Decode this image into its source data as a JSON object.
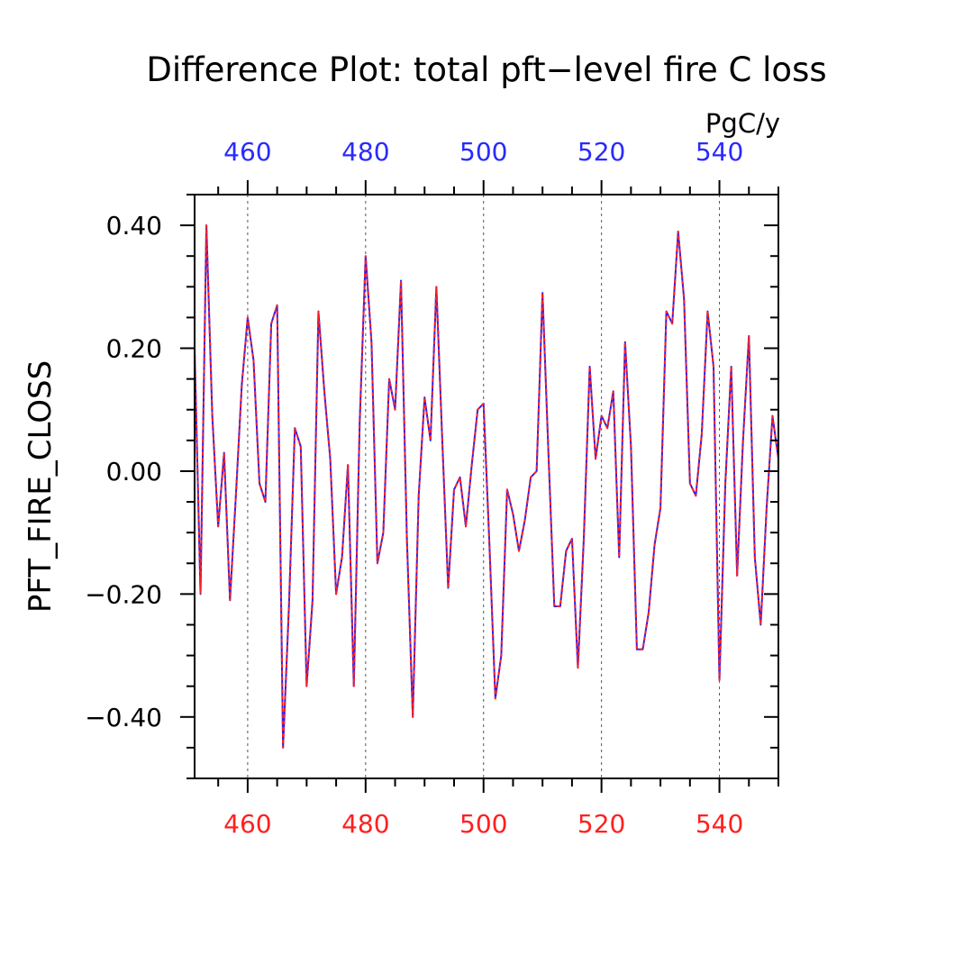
{
  "chart_data": {
    "type": "line",
    "title": "Difference Plot: total pft−level fire C loss",
    "units": "PgC/y",
    "ylabel": "PFT_FIRE_CLOSS",
    "xlabel": "",
    "xlim": [
      451,
      550
    ],
    "ylim": [
      -0.5,
      0.45
    ],
    "grid": "vertical dashed lines at major x ticks",
    "colors": {
      "bottom_axis_labels": "#ff2020",
      "top_axis_labels": "#2a2aff",
      "series_dashed": "#ff2020",
      "series_solid": "#2020ff",
      "frame": "#000000"
    },
    "x_ticks_bottom": [
      {
        "value": 460,
        "label": "460"
      },
      {
        "value": 480,
        "label": "480"
      },
      {
        "value": 500,
        "label": "500"
      },
      {
        "value": 520,
        "label": "520"
      },
      {
        "value": 540,
        "label": "540"
      }
    ],
    "x_ticks_top": [
      {
        "value": 460,
        "label": "460"
      },
      {
        "value": 480,
        "label": "480"
      },
      {
        "value": 500,
        "label": "500"
      },
      {
        "value": 520,
        "label": "520"
      },
      {
        "value": 540,
        "label": "540"
      }
    ],
    "y_ticks": [
      {
        "value": 0.4,
        "label": "0.40"
      },
      {
        "value": 0.2,
        "label": "0.20"
      },
      {
        "value": 0.0,
        "label": "0.00"
      },
      {
        "value": -0.2,
        "label": "−0.20"
      },
      {
        "value": -0.4,
        "label": "−0.40"
      }
    ],
    "x": [
      451,
      452,
      453,
      454,
      455,
      456,
      457,
      458,
      459,
      460,
      461,
      462,
      463,
      464,
      465,
      466,
      467,
      468,
      469,
      470,
      471,
      472,
      473,
      474,
      475,
      476,
      477,
      478,
      479,
      480,
      481,
      482,
      483,
      484,
      485,
      486,
      487,
      488,
      489,
      490,
      491,
      492,
      493,
      494,
      495,
      496,
      497,
      498,
      499,
      500,
      501,
      502,
      503,
      504,
      505,
      506,
      507,
      508,
      509,
      510,
      511,
      512,
      513,
      514,
      515,
      516,
      517,
      518,
      519,
      520,
      521,
      522,
      523,
      524,
      525,
      526,
      527,
      528,
      529,
      530,
      531,
      532,
      533,
      534,
      535,
      536,
      537,
      538,
      539,
      540,
      541,
      542,
      543,
      544,
      545,
      546,
      547,
      548,
      549,
      550
    ],
    "series": [
      {
        "values": [
          0.2,
          -0.2,
          0.4,
          0.09,
          -0.09,
          0.03,
          -0.21,
          -0.04,
          0.14,
          0.25,
          0.18,
          -0.02,
          -0.05,
          0.24,
          0.27,
          -0.45,
          -0.22,
          0.07,
          0.04,
          -0.35,
          -0.21,
          0.26,
          0.13,
          0.02,
          -0.2,
          -0.14,
          0.01,
          -0.35,
          0.08,
          0.35,
          0.21,
          -0.15,
          -0.1,
          0.15,
          0.1,
          0.31,
          -0.11,
          -0.4,
          -0.04,
          0.12,
          0.05,
          0.3,
          0.05,
          -0.19,
          -0.03,
          -0.01,
          -0.09,
          0.01,
          0.1,
          0.11,
          -0.12,
          -0.37,
          -0.3,
          -0.03,
          -0.07,
          -0.13,
          -0.08,
          -0.01,
          0.0,
          0.29,
          0.03,
          -0.22,
          -0.22,
          -0.13,
          -0.11,
          -0.32,
          -0.11,
          0.17,
          0.02,
          0.09,
          0.07,
          0.13,
          -0.14,
          0.21,
          0.04,
          -0.29,
          -0.29,
          -0.23,
          -0.12,
          -0.06,
          0.26,
          0.24,
          0.39,
          0.28,
          -0.02,
          -0.04,
          0.06,
          0.26,
          0.17,
          -0.34,
          -0.02,
          0.17,
          -0.17,
          0.05,
          0.22,
          -0.14,
          -0.25,
          -0.06,
          0.09,
          0.02
        ]
      }
    ]
  }
}
